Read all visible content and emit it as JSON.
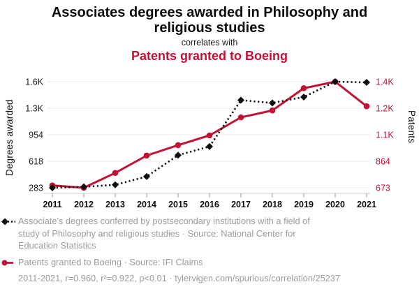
{
  "header": {
    "title": "Associates degrees awarded in Philosophy and religious studies",
    "connector": "correlates with",
    "subtitle": "Patents granted to Boeing"
  },
  "colors": {
    "accent_red": "#c11236",
    "series_black": "#0d0d0d",
    "grid": "#ebebeb",
    "axis_line": "#cfcfcf",
    "tick_mark": "#9a9a9a",
    "tick_text": "#1a1a1a",
    "legend_gray": "#9c9c9c"
  },
  "chart_data": {
    "type": "line",
    "x": [
      2011,
      2012,
      2013,
      2014,
      2015,
      2016,
      2017,
      2018,
      2019,
      2020,
      2021
    ],
    "series": [
      {
        "name": "Associate's degrees conferred by postsecondary institutions with a field of study of Philosophy and religious studies",
        "source": "National Center for Education Statistics",
        "axis": "left",
        "color": "#0d0d0d",
        "marker": "diamond",
        "line_style": "dotted",
        "values": [
          283,
          295,
          320,
          425,
          695,
          805,
          1390,
          1355,
          1430,
          1624,
          1615
        ]
      },
      {
        "name": "Patents granted to Boeing",
        "source": "IFI Claims",
        "axis": "right",
        "color": "#c11236",
        "marker": "circle",
        "line_style": "solid",
        "values": [
          690,
          673,
          780,
          905,
          980,
          1050,
          1180,
          1230,
          1390,
          1437,
          1260
        ]
      }
    ],
    "left_axis": {
      "label": "Degrees awarded",
      "ticks": [
        "1.6K",
        "1.3K",
        "954",
        "618",
        "283"
      ],
      "tick_values": [
        1624,
        1289,
        954,
        618,
        283
      ]
    },
    "right_axis": {
      "label": "Patents",
      "ticks": [
        "1.4K",
        "1.2K",
        "1.1K",
        "864",
        "673"
      ],
      "tick_values": [
        1437,
        1246,
        1055,
        864,
        673
      ]
    },
    "grid": "horizontal-only",
    "legend_position": "bottom-left"
  },
  "legend": {
    "series1_label": "Associate's degrees conferred by postsecondary institutions with a field of study of Philosophy and religious studies · Source: National Center for Education Statistics",
    "series2_label": "Patents granted to Boeing · Source: IFI Claims",
    "footnote": "2011-2021, r=0.960, r²=0.922, p<0.01 · tylervigen.com/spurious/correlation/25237"
  }
}
